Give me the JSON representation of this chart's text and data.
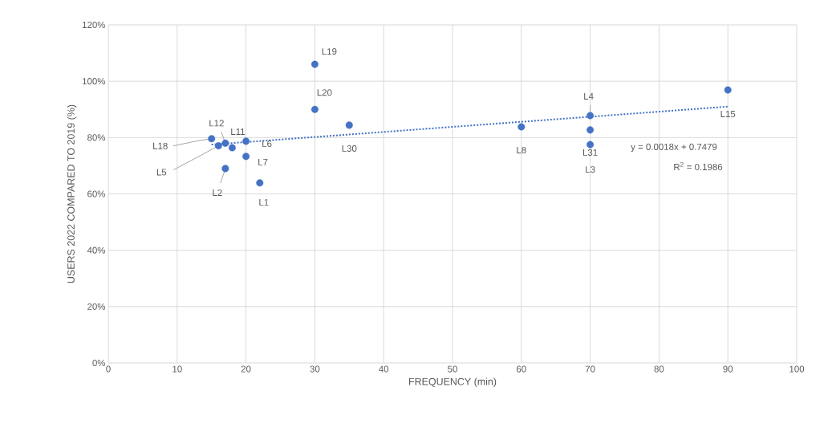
{
  "chart_data": {
    "type": "scatter",
    "xlabel": "FREQUENCY (min)",
    "ylabel": "USERS 2022 COMPARED TO 2019 (%)",
    "series": [
      {
        "color": "#4472c4",
        "marker": "circle",
        "x": [
          22,
          17,
          70,
          70,
          16,
          20,
          20,
          60,
          18,
          17,
          90,
          15,
          30,
          30,
          35,
          70
        ],
        "values": [
          63.9,
          69,
          77.5,
          87.8,
          77.1,
          78.7,
          73.3,
          83.8,
          76.4,
          78,
          96.9,
          79.6,
          106,
          90,
          84.4,
          82.7
        ]
      },
      {
        "type": "line",
        "color": "#4472c4",
        "marker": "none",
        "line_style": "dotted",
        "x": [
          15,
          90
        ],
        "values": [
          77.5,
          91
        ]
      }
    ],
    "annotations": [
      {
        "text": "L1",
        "x": 22,
        "y": 63.9
      },
      {
        "text": "L2",
        "x": 17,
        "y": 69
      },
      {
        "text": "L3",
        "x": 70,
        "y": 77.5
      },
      {
        "text": "L4",
        "x": 70,
        "y": 87.8
      },
      {
        "text": "L5",
        "x": 16,
        "y": 77.1
      },
      {
        "text": "L6",
        "x": 20,
        "y": 78.7
      },
      {
        "text": "L7",
        "x": 20,
        "y": 73.3
      },
      {
        "text": "L8",
        "x": 60,
        "y": 83.8
      },
      {
        "text": "L11",
        "x": 18,
        "y": 76.4
      },
      {
        "text": "L12",
        "x": 17,
        "y": 78
      },
      {
        "text": "L15",
        "x": 90,
        "y": 96.9
      },
      {
        "text": "L18",
        "x": 15,
        "y": 79.6
      },
      {
        "text": "L19",
        "x": 30,
        "y": 106
      },
      {
        "text": "L20",
        "x": 30,
        "y": 90
      },
      {
        "text": "L30",
        "x": 35,
        "y": 84.4
      },
      {
        "text": "L31",
        "x": 70,
        "y": 82.7
      },
      "y = 0.0018x + 0.7479",
      "R$^{2}$ = 0.1986"
    ],
    "xlim": [
      0,
      100
    ],
    "xticks": [
      0,
      10,
      20,
      30,
      40,
      50,
      60,
      70,
      80,
      90,
      100
    ],
    "ylim": [
      0,
      120
    ],
    "yticks": [
      {
        "value": 0,
        "label": "0%"
      },
      {
        "value": 20,
        "label": "20%"
      },
      {
        "value": 40,
        "label": "40%"
      },
      {
        "value": 60,
        "label": "60%"
      },
      {
        "value": 80,
        "label": "80%"
      },
      {
        "value": 100,
        "label": "100%"
      },
      {
        "value": 120,
        "label": "120%"
      }
    ],
    "grid": true
  }
}
